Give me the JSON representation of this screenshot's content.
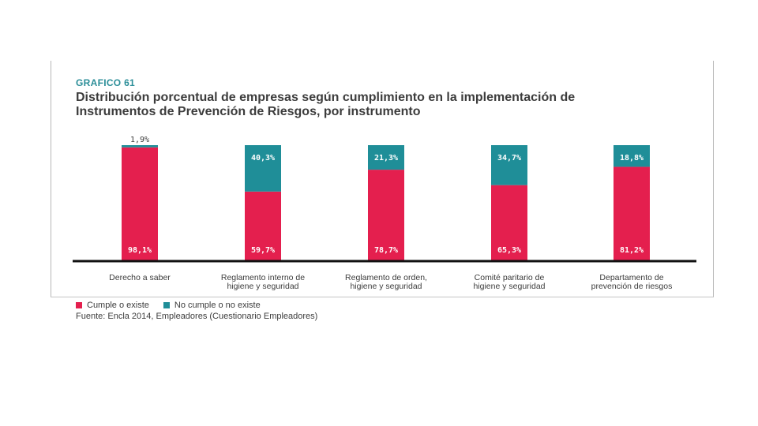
{
  "chart_number": "GRAFICO 61",
  "title_lines": [
    "Distribución porcentual de empresas según cumplimiento en la implementación de",
    "Instrumentos de Prevención de Riesgos, por instrumento"
  ],
  "colors": {
    "cumple": "#e41f4e",
    "no_cumple": "#1f8e98",
    "title_accent": "#2b8e98"
  },
  "chart_data": {
    "type": "bar",
    "stacked": true,
    "title": "Distribución porcentual de empresas según cumplimiento en la implementación de Instrumentos de Prevención de Riesgos, por instrumento",
    "categories": [
      [
        "Derecho a saber"
      ],
      [
        "Reglamento interno de",
        "higiene y seguridad"
      ],
      [
        "Reglamento de orden,",
        "higiene y seguridad"
      ],
      [
        "Comité paritario de",
        "higiene y seguridad"
      ],
      [
        "Departamento de",
        "prevención de riesgos"
      ]
    ],
    "series": [
      {
        "name": "Cumple o existe",
        "values": [
          98.1,
          59.7,
          78.7,
          65.3,
          81.2
        ],
        "labels": [
          "98,1%",
          "59,7%",
          "78,7%",
          "65,3%",
          "81,2%"
        ]
      },
      {
        "name": "No cumple o no existe",
        "values": [
          1.9,
          40.3,
          21.3,
          34.7,
          18.8
        ],
        "labels": [
          "1,9%",
          "40,3%",
          "21,3%",
          "34,7%",
          "18,8%"
        ]
      }
    ],
    "ylim": [
      0,
      100
    ],
    "legend_position": "bottom-left"
  },
  "legend": [
    {
      "label": "Cumple o existe"
    },
    {
      "label": "No cumple o no existe"
    }
  ],
  "source": "Fuente: Encla 2014, Empleadores (Cuestionario Empleadores)"
}
